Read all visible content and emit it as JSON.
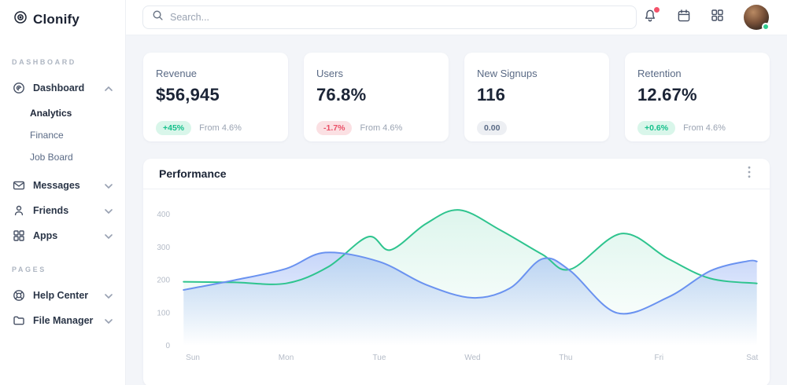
{
  "brand": {
    "name": "Clonify"
  },
  "topbar": {
    "search_placeholder": "Search...",
    "icons": [
      "bell-icon",
      "calendar-icon",
      "apps-grid-icon",
      "avatar"
    ],
    "notification_dot_color": "#f4526a",
    "avatar_status": "online",
    "avatar_status_color": "#2ecc8e"
  },
  "sidebar": {
    "sections": [
      {
        "label": "DASHBOARD",
        "items": [
          {
            "label": "Dashboard",
            "icon": "disc-icon",
            "expanded": true,
            "children": [
              "Analytics",
              "Finance",
              "Job Board"
            ],
            "active_child": "Analytics"
          },
          {
            "label": "Messages",
            "icon": "mail-icon",
            "expanded": false
          },
          {
            "label": "Friends",
            "icon": "user-icon",
            "expanded": false
          },
          {
            "label": "Apps",
            "icon": "grid-icon",
            "expanded": false
          }
        ]
      },
      {
        "label": "PAGES",
        "items": [
          {
            "label": "Help Center",
            "icon": "lifebuoy-icon",
            "expanded": false
          },
          {
            "label": "File Manager",
            "icon": "folder-icon",
            "expanded": false
          }
        ]
      }
    ]
  },
  "stats": [
    {
      "title": "Revenue",
      "value": "$56,945",
      "badge": "+45%",
      "badge_type": "positive",
      "note": "From 4.6%"
    },
    {
      "title": "Users",
      "value": "76.8%",
      "badge": "-1.7%",
      "badge_type": "negative",
      "note": "From 4.6%"
    },
    {
      "title": "New Signups",
      "value": "116",
      "badge": "0.00",
      "badge_type": "neutral",
      "note": ""
    },
    {
      "title": "Retention",
      "value": "12.67%",
      "badge": "+0.6%",
      "badge_type": "positive",
      "note": "From 4.6%"
    }
  ],
  "panel": {
    "title": "Performance",
    "menu_icon": "kebab-menu-icon"
  },
  "chart_data": {
    "type": "area",
    "title": "Performance",
    "categories": [
      "Sun",
      "Mon",
      "Tue",
      "Wed",
      "Thu",
      "Fri",
      "Sat"
    ],
    "yticks": [
      0,
      100,
      200,
      300,
      400
    ],
    "ylim": [
      0,
      440
    ],
    "grid": false,
    "legend": "none",
    "axis_text_color": "#b4bbc7",
    "series": [
      {
        "name": "green",
        "color": "#2ec48e",
        "fill_opacity_top": 0.16,
        "values_by_day": [
          195,
          190,
          310,
          415,
          235,
          330,
          190
        ],
        "points": [
          [
            -0.1,
            195
          ],
          [
            0.45,
            193
          ],
          [
            1.0,
            190
          ],
          [
            1.45,
            240
          ],
          [
            1.88,
            332
          ],
          [
            2.12,
            292
          ],
          [
            2.5,
            372
          ],
          [
            2.86,
            414
          ],
          [
            3.3,
            352
          ],
          [
            3.75,
            278
          ],
          [
            4.05,
            233
          ],
          [
            4.6,
            342
          ],
          [
            5.1,
            265
          ],
          [
            5.55,
            205
          ],
          [
            6.05,
            190
          ]
        ]
      },
      {
        "name": "blue",
        "color": "#6a92f0",
        "fill_opacity_top": 0.38,
        "values_by_day": [
          170,
          235,
          256,
          146,
          228,
          120,
          257
        ],
        "points": [
          [
            -0.1,
            170
          ],
          [
            0.45,
            200
          ],
          [
            1.0,
            235
          ],
          [
            1.42,
            284
          ],
          [
            2.0,
            256
          ],
          [
            2.5,
            186
          ],
          [
            3.0,
            146
          ],
          [
            3.4,
            175
          ],
          [
            3.75,
            265
          ],
          [
            4.05,
            228
          ],
          [
            4.55,
            100
          ],
          [
            5.1,
            148
          ],
          [
            5.55,
            228
          ],
          [
            5.95,
            258
          ],
          [
            6.05,
            257
          ]
        ]
      }
    ]
  }
}
